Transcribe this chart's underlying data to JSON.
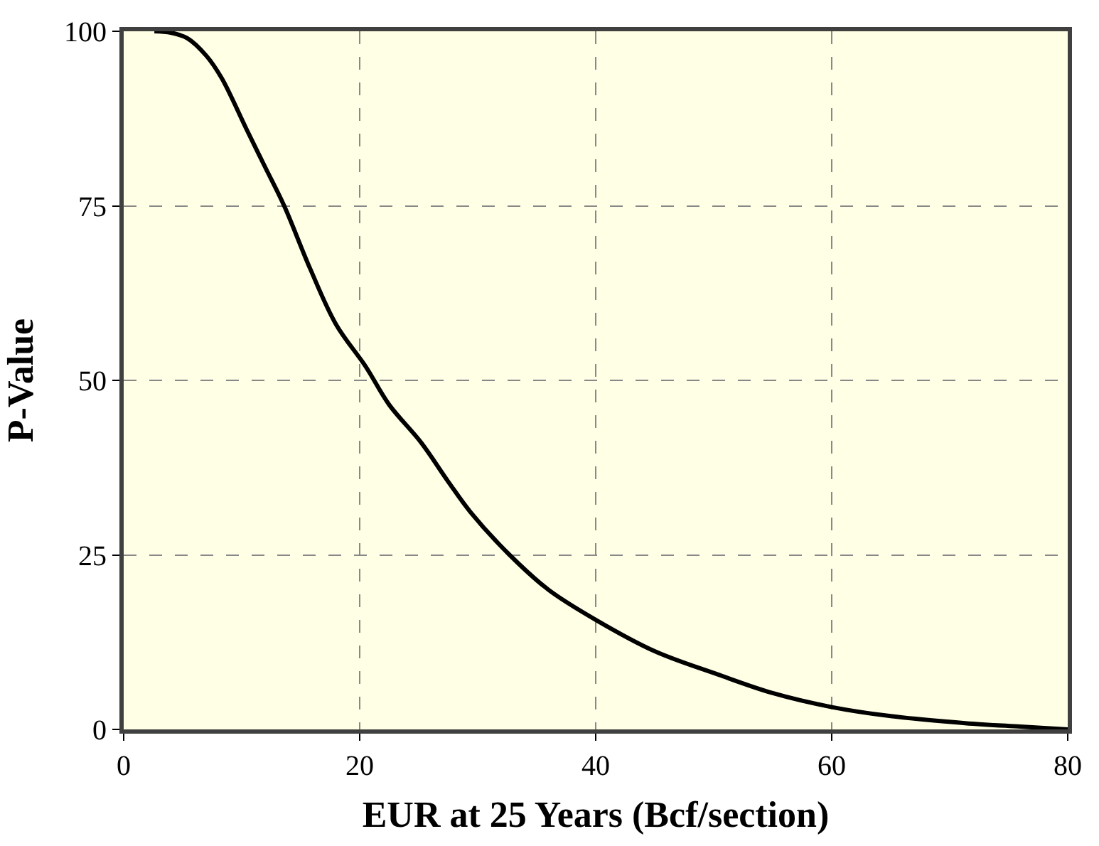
{
  "chart_data": {
    "type": "line",
    "xlabel": "EUR at 25 Years (Bcf/section)",
    "ylabel": "P-Value",
    "x": [
      2.6,
      4,
      5.4,
      7,
      8.3,
      10.4,
      12,
      13.6,
      15.8,
      18,
      20.5,
      22.5,
      25.2,
      27.5,
      29.4,
      32.7,
      36,
      40,
      45,
      50.3,
      55,
      60,
      65,
      71.3,
      76,
      80
    ],
    "series": [
      {
        "color": "#000000",
        "values": [
          100,
          99.8,
          99,
          96.5,
          93.3,
          86,
          80.5,
          75,
          66,
          58,
          52,
          46.5,
          41.1,
          35.5,
          31.1,
          25,
          20,
          15.7,
          11.2,
          7.9,
          5.2,
          3.2,
          1.9,
          0.9,
          0.4,
          0
        ]
      }
    ],
    "xlim": [
      0,
      80
    ],
    "xticks": [
      0,
      20,
      40,
      60,
      80
    ],
    "ylim": [
      0,
      100
    ],
    "yticks": [
      0,
      25,
      50,
      75,
      100
    ],
    "grid": true,
    "marker": "none",
    "line_style": "solid"
  }
}
